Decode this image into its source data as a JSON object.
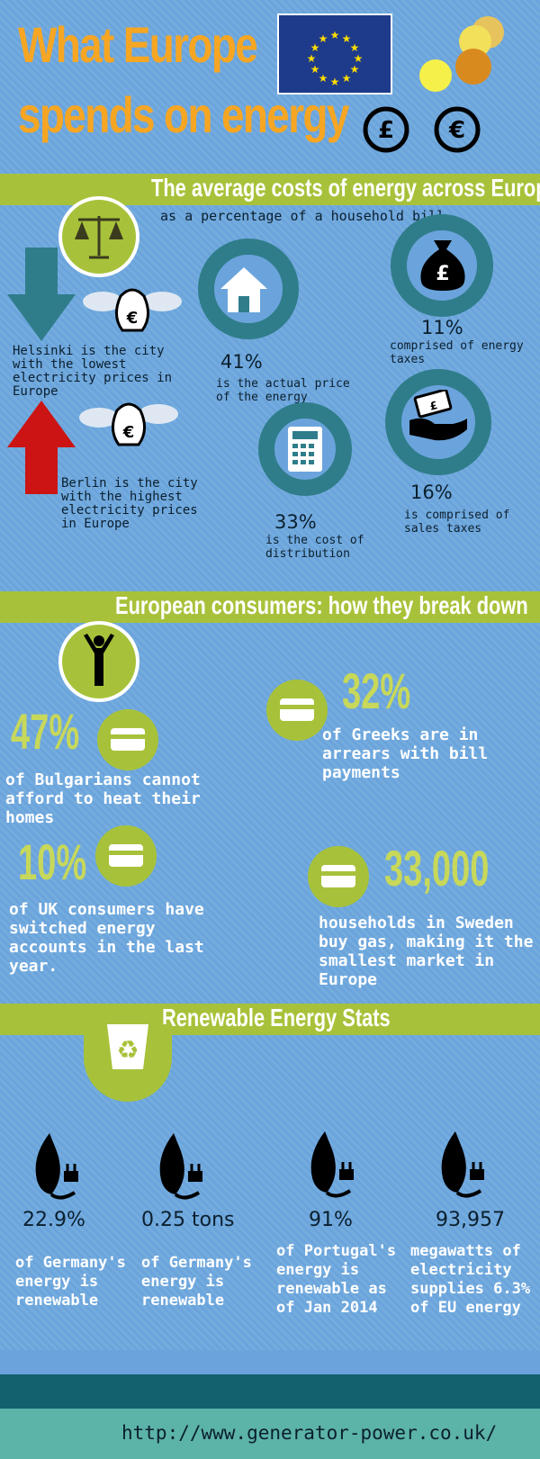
{
  "header": {
    "title_line1": "What Europe",
    "title_line2": "spends on energy",
    "flag_colors": {
      "blue": "#1e3a8a",
      "stars": "#ffdd00"
    }
  },
  "section1": {
    "heading": "The average costs of energy across Europe",
    "subheading": "as a percentage of a household bill",
    "helsinki": "Helsinki is the city with the lowest electricity prices in Europe",
    "berlin": "Berlin is the city with the highest electricity prices in Europe",
    "items": [
      {
        "pct": "41%",
        "text": "is the actual price of the energy",
        "icon": "house-icon"
      },
      {
        "pct": "11%",
        "text": "comprised of energy taxes",
        "icon": "money-bag-icon"
      },
      {
        "pct": "33%",
        "text": "is the cost of distribution",
        "icon": "calculator-icon"
      },
      {
        "pct": "16%",
        "text": "is comprised of sales taxes",
        "icon": "hand-money-icon"
      }
    ]
  },
  "section2": {
    "heading": "European consumers: how they break down",
    "stats": [
      {
        "value": "47%",
        "text": "of Bulgarians cannot afford to heat their homes"
      },
      {
        "value": "32%",
        "text": "of Greeks are in arrears with bill payments"
      },
      {
        "value": "10%",
        "text": "of UK consumers have switched energy accounts in the last year."
      },
      {
        "value": "33,000",
        "text": "households in Sweden buy gas, making it the smallest market in Europe"
      }
    ]
  },
  "section3": {
    "heading": "Renewable Energy Stats",
    "stats": [
      {
        "value": "22.9%",
        "text": "of Germany's energy is renewable"
      },
      {
        "value": "0.25 tons",
        "text": "of Germany's energy is renewable"
      },
      {
        "value": "91%",
        "text": "of Portugal's energy is renewable as of Jan 2014"
      },
      {
        "value": "93,957",
        "text": "megawatts of electricity supplies 6.3% of EU energy"
      }
    ]
  },
  "footer": {
    "url": "http://www.generator-power.co.uk/"
  },
  "colors": {
    "accent": "#f6a623",
    "green": "#a7c23a",
    "teal": "#2f7d8a",
    "background": "#6ba4dc"
  }
}
